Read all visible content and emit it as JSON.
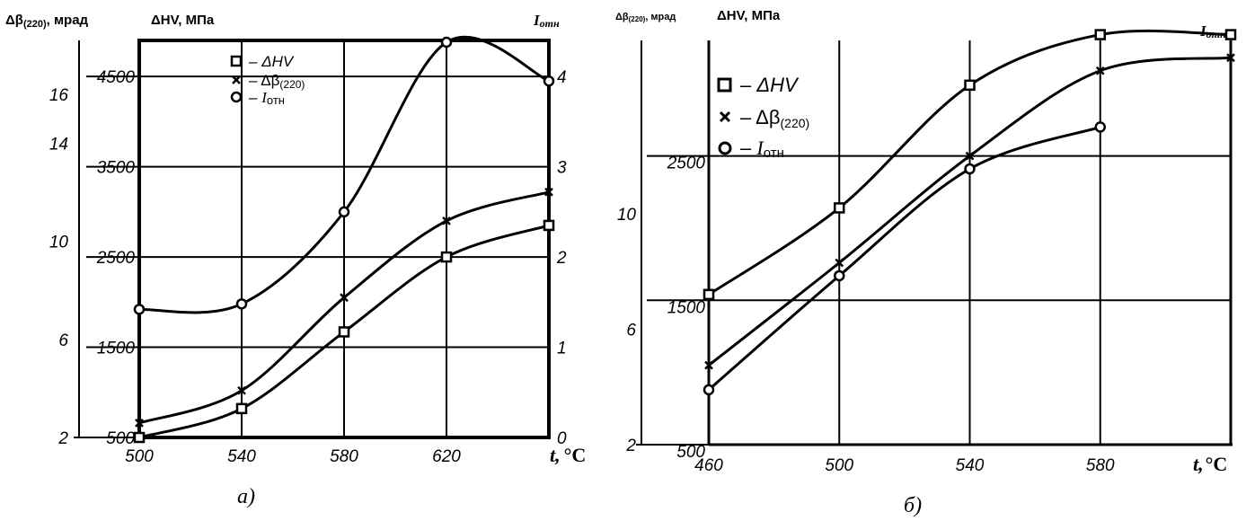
{
  "chart_data": [
    {
      "type": "line",
      "caption": "а)",
      "header_left_1": "Δβ",
      "header_left_1_sub": "(220)",
      "header_left_1_tail": ", мрад",
      "header_left_2": "ΔHV, МПа",
      "header_right": "I",
      "header_right_sub": "отн",
      "xlabel": "t,",
      "xunit": "°C",
      "x": [
        500,
        540,
        580,
        620
      ],
      "x_ticks": [
        "500",
        "540",
        "580",
        "620"
      ],
      "xlim": [
        500,
        660
      ],
      "ylim_beta": [
        2,
        18.2
      ],
      "ylim_hv": [
        500,
        4900
      ],
      "ylim_i": [
        0,
        4.4
      ],
      "beta_ticks": [
        "2",
        "6",
        "10",
        "14",
        "16"
      ],
      "hv_ticks": [
        "500",
        "1500",
        "2500",
        "3500",
        "4500"
      ],
      "i_ticks": [
        "0",
        "1",
        "2",
        "3",
        "4"
      ],
      "legend": [
        {
          "marker": "square",
          "dash": "–",
          "label": "ΔHV",
          "label_sub": ""
        },
        {
          "marker": "cross",
          "dash": "–",
          "label": "Δβ",
          "label_sub": "(220)"
        },
        {
          "marker": "circle",
          "dash": "–",
          "label": "I",
          "label_sub": "отн"
        }
      ],
      "series": [
        {
          "key": "hv",
          "axis": "hv",
          "marker": "square",
          "x": [
            500,
            540,
            580,
            620,
            660
          ],
          "values": [
            500,
            820,
            1670,
            2500,
            2850
          ]
        },
        {
          "key": "beta",
          "axis": "hv",
          "marker": "cross",
          "x": [
            500,
            540,
            580,
            620,
            660
          ],
          "values": [
            660,
            1020,
            2050,
            2900,
            3220
          ]
        },
        {
          "key": "i",
          "axis": "i",
          "marker": "circle",
          "x": [
            500,
            540,
            580,
            620,
            660
          ],
          "values": [
            1.42,
            1.48,
            2.5,
            4.38,
            3.95
          ]
        }
      ]
    },
    {
      "type": "line",
      "caption": "б)",
      "header_left_1": "Δβ",
      "header_left_1_sub": "(220)",
      "header_left_1_tail": ", мрад",
      "header_left_2": "ΔHV, МПа",
      "header_right": "I",
      "header_right_sub": "отн",
      "xlabel": "t,",
      "xunit": "°C",
      "x": [
        460,
        500,
        540,
        580
      ],
      "x_ticks": [
        "460",
        "500",
        "540",
        "580"
      ],
      "xlim": [
        460,
        620
      ],
      "ylim_beta": [
        2,
        16
      ],
      "ylim_hv": [
        500,
        3300
      ],
      "beta_ticks": [
        "2",
        "6",
        "10"
      ],
      "hv_ticks": [
        "500",
        "1500",
        "2500"
      ],
      "legend": [
        {
          "marker": "square",
          "dash": "–",
          "label": "ΔHV",
          "label_sub": ""
        },
        {
          "marker": "cross",
          "dash": "–",
          "label": "Δβ",
          "label_sub": "(220)"
        },
        {
          "marker": "circle",
          "dash": "–",
          "label": "I",
          "label_sub": "отн"
        }
      ],
      "series": [
        {
          "key": "hv",
          "axis": "hv",
          "marker": "square",
          "x": [
            460,
            500,
            540,
            580,
            620
          ],
          "values": [
            1540,
            2140,
            2990,
            3340,
            3340
          ]
        },
        {
          "key": "beta",
          "axis": "hv",
          "marker": "cross",
          "x": [
            460,
            500,
            540,
            580,
            620
          ],
          "values": [
            1050,
            1760,
            2500,
            3090,
            3180
          ]
        },
        {
          "key": "i",
          "axis": "hv",
          "marker": "circle",
          "x": [
            460,
            500,
            540,
            580
          ],
          "values": [
            880,
            1670,
            2410,
            2700
          ]
        }
      ]
    }
  ]
}
